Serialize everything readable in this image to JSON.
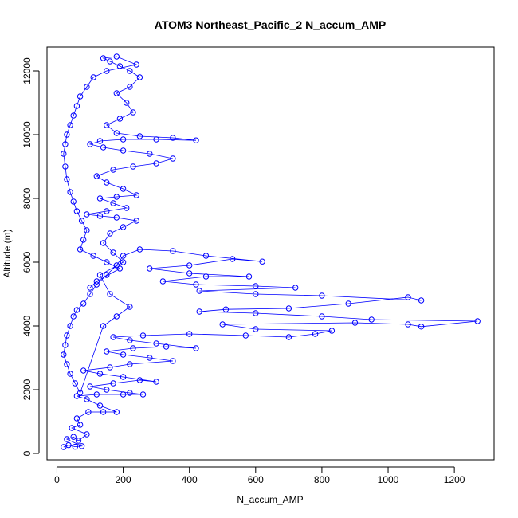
{
  "chart_data": {
    "type": "scatter",
    "title": "ATOM3 Northeast_Pacific_2 N_accum_AMP",
    "xlabel": "N_accum_AMP",
    "ylabel": "Altitude (m)",
    "xlim": [
      -30,
      1320
    ],
    "ylim": [
      -200,
      12750
    ],
    "x_ticks": [
      0,
      200,
      400,
      600,
      800,
      1000,
      1200
    ],
    "y_ticks": [
      0,
      2000,
      4000,
      6000,
      8000,
      10000,
      12000
    ],
    "series": [
      {
        "color": "#0000ff",
        "marker": "open-circle",
        "connected": true,
        "points": [
          [
            20,
            200
          ],
          [
            35,
            260
          ],
          [
            55,
            210
          ],
          [
            75,
            230
          ],
          [
            30,
            450
          ],
          [
            50,
            520
          ],
          [
            65,
            400
          ],
          [
            90,
            600
          ],
          [
            45,
            800
          ],
          [
            70,
            900
          ],
          [
            60,
            1100
          ],
          [
            95,
            1300
          ],
          [
            140,
            1300
          ],
          [
            180,
            1300
          ],
          [
            130,
            1500
          ],
          [
            90,
            1700
          ],
          [
            60,
            1800
          ],
          [
            120,
            1850
          ],
          [
            200,
            1850
          ],
          [
            260,
            1850
          ],
          [
            220,
            1900
          ],
          [
            150,
            2000
          ],
          [
            100,
            2100
          ],
          [
            170,
            2200
          ],
          [
            250,
            2300
          ],
          [
            300,
            2250
          ],
          [
            200,
            2400
          ],
          [
            130,
            2500
          ],
          [
            80,
            2600
          ],
          [
            160,
            2700
          ],
          [
            220,
            2800
          ],
          [
            350,
            2900
          ],
          [
            280,
            3000
          ],
          [
            200,
            3100
          ],
          [
            150,
            3200
          ],
          [
            230,
            3300
          ],
          [
            330,
            3350
          ],
          [
            420,
            3300
          ],
          [
            300,
            3450
          ],
          [
            220,
            3550
          ],
          [
            170,
            3650
          ],
          [
            260,
            3700
          ],
          [
            400,
            3750
          ],
          [
            570,
            3700
          ],
          [
            700,
            3650
          ],
          [
            780,
            3750
          ],
          [
            830,
            3850
          ],
          [
            600,
            3900
          ],
          [
            500,
            4050
          ],
          [
            900,
            4100
          ],
          [
            1060,
            4050
          ],
          [
            1100,
            3980
          ],
          [
            1270,
            4150
          ],
          [
            950,
            4200
          ],
          [
            800,
            4300
          ],
          [
            600,
            4400
          ],
          [
            430,
            4450
          ],
          [
            510,
            4520
          ],
          [
            700,
            4550
          ],
          [
            880,
            4700
          ],
          [
            1060,
            4900
          ],
          [
            1100,
            4800
          ],
          [
            800,
            4950
          ],
          [
            600,
            5000
          ],
          [
            430,
            5100
          ],
          [
            720,
            5200
          ],
          [
            600,
            5250
          ],
          [
            420,
            5300
          ],
          [
            320,
            5400
          ],
          [
            450,
            5550
          ],
          [
            580,
            5550
          ],
          [
            400,
            5650
          ],
          [
            280,
            5800
          ],
          [
            400,
            5900
          ],
          [
            530,
            6100
          ],
          [
            620,
            6020
          ],
          [
            450,
            6200
          ],
          [
            350,
            6350
          ],
          [
            250,
            6400
          ],
          [
            200,
            6200
          ],
          [
            180,
            5900
          ],
          [
            150,
            5600
          ],
          [
            120,
            5300
          ],
          [
            100,
            5000
          ],
          [
            80,
            4700
          ],
          [
            60,
            4500
          ],
          [
            50,
            4300
          ],
          [
            40,
            4000
          ],
          [
            30,
            3700
          ],
          [
            25,
            3400
          ],
          [
            20,
            3100
          ],
          [
            30,
            2800
          ],
          [
            40,
            2500
          ],
          [
            55,
            2200
          ],
          [
            70,
            1900
          ],
          [
            140,
            4000
          ],
          [
            180,
            4300
          ],
          [
            220,
            4600
          ],
          [
            160,
            5000
          ],
          [
            130,
            5600
          ],
          [
            200,
            6000
          ],
          [
            170,
            6300
          ],
          [
            140,
            6600
          ],
          [
            160,
            6900
          ],
          [
            200,
            7100
          ],
          [
            240,
            7300
          ],
          [
            180,
            7400
          ],
          [
            130,
            7450
          ],
          [
            90,
            7500
          ],
          [
            150,
            7600
          ],
          [
            210,
            7700
          ],
          [
            170,
            7850
          ],
          [
            130,
            8000
          ],
          [
            180,
            8050
          ],
          [
            240,
            8100
          ],
          [
            200,
            8300
          ],
          [
            150,
            8500
          ],
          [
            120,
            8700
          ],
          [
            170,
            8900
          ],
          [
            230,
            9000
          ],
          [
            300,
            9100
          ],
          [
            350,
            9250
          ],
          [
            280,
            9400
          ],
          [
            200,
            9500
          ],
          [
            140,
            9600
          ],
          [
            100,
            9700
          ],
          [
            130,
            9800
          ],
          [
            200,
            9850
          ],
          [
            300,
            9850
          ],
          [
            420,
            9820
          ],
          [
            350,
            9900
          ],
          [
            250,
            9950
          ],
          [
            180,
            10050
          ],
          [
            150,
            10300
          ],
          [
            190,
            10500
          ],
          [
            230,
            10700
          ],
          [
            210,
            11000
          ],
          [
            180,
            11300
          ],
          [
            220,
            11500
          ],
          [
            250,
            11800
          ],
          [
            220,
            12000
          ],
          [
            190,
            12150
          ],
          [
            160,
            12300
          ],
          [
            140,
            12400
          ],
          [
            180,
            12450
          ],
          [
            240,
            12200
          ],
          [
            150,
            12000
          ],
          [
            110,
            11800
          ],
          [
            90,
            11500
          ],
          [
            70,
            11200
          ],
          [
            60,
            10900
          ],
          [
            50,
            10600
          ],
          [
            40,
            10300
          ],
          [
            30,
            10000
          ],
          [
            25,
            9700
          ],
          [
            20,
            9400
          ],
          [
            25,
            9000
          ],
          [
            30,
            8600
          ],
          [
            40,
            8200
          ],
          [
            50,
            7900
          ],
          [
            60,
            7600
          ],
          [
            75,
            7300
          ],
          [
            90,
            7000
          ],
          [
            80,
            6700
          ],
          [
            70,
            6400
          ],
          [
            110,
            6200
          ],
          [
            150,
            6000
          ],
          [
            190,
            5800
          ],
          [
            120,
            5400
          ],
          [
            100,
            5200
          ]
        ]
      }
    ]
  }
}
